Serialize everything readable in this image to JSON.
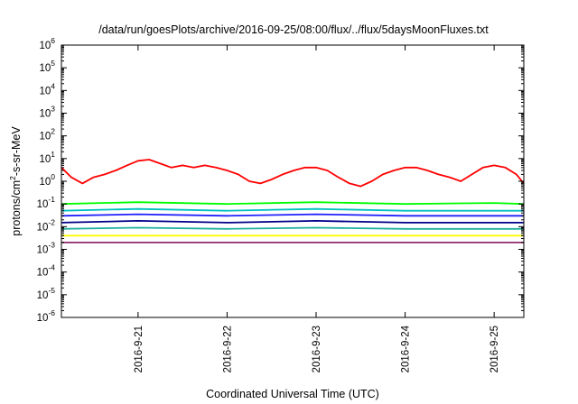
{
  "chart_data": {
    "type": "line",
    "title": "/data/run/goesPlots/archive/2016-09-25/08:00/flux/../flux/5daysMoonFluxes.txt",
    "xlabel": "Coordinated Universal Time (UTC)",
    "ylabel": {
      "pre": "protons/cm",
      "sup": "2",
      "post": "-s-sr-MeV"
    },
    "y_scale": "log",
    "ylim": [
      1e-06,
      1000000.0
    ],
    "y_ticks": [
      {
        "base": "10",
        "exp": "-6",
        "value": 1e-06
      },
      {
        "base": "10",
        "exp": "-5",
        "value": 1e-05
      },
      {
        "base": "10",
        "exp": "-4",
        "value": 0.0001
      },
      {
        "base": "10",
        "exp": "-3",
        "value": 0.001
      },
      {
        "base": "10",
        "exp": "-2",
        "value": 0.01
      },
      {
        "base": "10",
        "exp": "-1",
        "value": 0.1
      },
      {
        "base": "10",
        "exp": "0",
        "value": 1
      },
      {
        "base": "10",
        "exp": "1",
        "value": 10
      },
      {
        "base": "10",
        "exp": "2",
        "value": 100
      },
      {
        "base": "10",
        "exp": "3",
        "value": 1000
      },
      {
        "base": "10",
        "exp": "4",
        "value": 10000
      },
      {
        "base": "10",
        "exp": "5",
        "value": 100000
      },
      {
        "base": "10",
        "exp": "6",
        "value": 1000000
      }
    ],
    "xlim": [
      "2016-09-20 03:20",
      "2016-09-25 08:00"
    ],
    "x_ticks": [
      {
        "label": "2016-9-21",
        "value": "2016-09-21 00:00"
      },
      {
        "label": "2016-9-22",
        "value": "2016-09-22 00:00"
      },
      {
        "label": "2016-9-23",
        "value": "2016-09-23 00:00"
      },
      {
        "label": "2016-9-24",
        "value": "2016-09-24 00:00"
      },
      {
        "label": "2016-9-25",
        "value": "2016-09-25 00:00"
      }
    ],
    "grid": false,
    "legend": "none",
    "series": [
      {
        "color": "#ff0000",
        "x": [
          "2016-09-20 03:20",
          "2016-09-20 06:00",
          "2016-09-20 09:00",
          "2016-09-20 12:00",
          "2016-09-20 15:00",
          "2016-09-20 18:00",
          "2016-09-20 21:00",
          "2016-09-21 00:00",
          "2016-09-21 03:00",
          "2016-09-21 06:00",
          "2016-09-21 09:00",
          "2016-09-21 12:00",
          "2016-09-21 15:00",
          "2016-09-21 18:00",
          "2016-09-21 21:00",
          "2016-09-22 00:00",
          "2016-09-22 03:00",
          "2016-09-22 06:00",
          "2016-09-22 09:00",
          "2016-09-22 12:00",
          "2016-09-22 15:00",
          "2016-09-22 18:00",
          "2016-09-22 21:00",
          "2016-09-23 00:00",
          "2016-09-23 03:00",
          "2016-09-23 06:00",
          "2016-09-23 09:00",
          "2016-09-23 12:00",
          "2016-09-23 15:00",
          "2016-09-23 18:00",
          "2016-09-23 21:00",
          "2016-09-24 00:00",
          "2016-09-24 03:00",
          "2016-09-24 06:00",
          "2016-09-24 09:00",
          "2016-09-24 12:00",
          "2016-09-24 15:00",
          "2016-09-24 18:00",
          "2016-09-24 21:00",
          "2016-09-25 00:00",
          "2016-09-25 03:00",
          "2016-09-25 06:00",
          "2016-09-25 08:00"
        ],
        "y": [
          4,
          1.5,
          0.8,
          1.5,
          2,
          3,
          5,
          8,
          9,
          6,
          4,
          5,
          4,
          5,
          4,
          3,
          2,
          1,
          0.8,
          1.2,
          2,
          3,
          4,
          4,
          3,
          1.5,
          0.8,
          0.6,
          1,
          2,
          3,
          4,
          4,
          3,
          2,
          1.5,
          1,
          2,
          4,
          5,
          4,
          2,
          0.8
        ]
      },
      {
        "color": "#00ff00",
        "x": [
          "2016-09-20 03:20",
          "2016-09-21 00:00",
          "2016-09-22 00:00",
          "2016-09-23 00:00",
          "2016-09-24 00:00",
          "2016-09-25 00:00",
          "2016-09-25 08:00"
        ],
        "y": [
          0.1,
          0.12,
          0.1,
          0.12,
          0.1,
          0.11,
          0.1
        ]
      },
      {
        "color": "#00c0c0",
        "x": [
          "2016-09-20 03:20",
          "2016-09-21 00:00",
          "2016-09-22 00:00",
          "2016-09-23 00:00",
          "2016-09-24 00:00",
          "2016-09-25 00:00",
          "2016-09-25 08:00"
        ],
        "y": [
          0.05,
          0.06,
          0.05,
          0.06,
          0.05,
          0.05,
          0.05
        ]
      },
      {
        "color": "#2020ff",
        "x": [
          "2016-09-20 03:20",
          "2016-09-21 00:00",
          "2016-09-22 00:00",
          "2016-09-23 00:00",
          "2016-09-24 00:00",
          "2016-09-25 00:00",
          "2016-09-25 08:00"
        ],
        "y": [
          0.03,
          0.035,
          0.03,
          0.035,
          0.03,
          0.03,
          0.03
        ]
      },
      {
        "color": "#00008b",
        "x": [
          "2016-09-20 03:20",
          "2016-09-21 00:00",
          "2016-09-22 00:00",
          "2016-09-23 00:00",
          "2016-09-24 00:00",
          "2016-09-25 00:00",
          "2016-09-25 08:00"
        ],
        "y": [
          0.015,
          0.018,
          0.015,
          0.018,
          0.015,
          0.015,
          0.015
        ]
      },
      {
        "color": "#20b0a0",
        "x": [
          "2016-09-20 03:20",
          "2016-09-21 00:00",
          "2016-09-22 00:00",
          "2016-09-23 00:00",
          "2016-09-24 00:00",
          "2016-09-25 00:00",
          "2016-09-25 08:00"
        ],
        "y": [
          0.008,
          0.009,
          0.008,
          0.009,
          0.008,
          0.008,
          0.008
        ]
      },
      {
        "color": "#ffff00",
        "x": [
          "2016-09-20 03:20",
          "2016-09-21 00:00",
          "2016-09-22 00:00",
          "2016-09-23 00:00",
          "2016-09-24 00:00",
          "2016-09-25 00:00",
          "2016-09-25 08:00"
        ],
        "y": [
          0.004,
          0.004,
          0.004,
          0.004,
          0.004,
          0.004,
          0.004
        ]
      },
      {
        "color": "#8b2a6b",
        "x": [
          "2016-09-20 03:20",
          "2016-09-21 00:00",
          "2016-09-22 00:00",
          "2016-09-23 00:00",
          "2016-09-24 00:00",
          "2016-09-25 00:00",
          "2016-09-25 08:00"
        ],
        "y": [
          0.002,
          0.002,
          0.002,
          0.002,
          0.002,
          0.002,
          0.002
        ]
      }
    ]
  }
}
